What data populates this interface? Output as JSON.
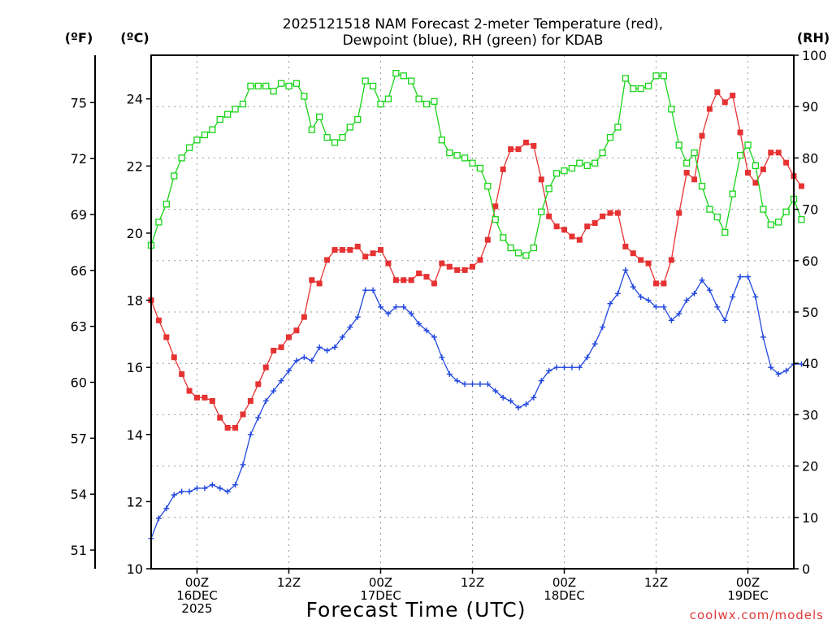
{
  "chart_data": {
    "type": "line",
    "title": [
      "2025121518 NAM Forecast 2-meter Temperature (red),",
      "Dewpoint (blue), RH (green) for KDAB"
    ],
    "xlabel": "Forecast Time (UTC)",
    "credit": "coolwx.com/models",
    "axes": {
      "fahrenheit": {
        "label": "(ºF)",
        "ticks": [
          51,
          54,
          57,
          60,
          63,
          66,
          69,
          72,
          75
        ]
      },
      "celsius": {
        "label": "(ºC)",
        "ticks": [
          10,
          12,
          14,
          16,
          18,
          20,
          22,
          24
        ],
        "ylim": [
          10,
          25.3
        ]
      },
      "rh": {
        "label": "(RH)",
        "ticks": [
          0,
          10,
          20,
          30,
          40,
          50,
          60,
          70,
          80,
          90,
          100
        ],
        "ylim": [
          0,
          100
        ]
      }
    },
    "x_range_hours": [
      0,
      84
    ],
    "x_ticks": [
      {
        "hour": 6,
        "lines": [
          "00Z",
          "16DEC",
          "2025"
        ]
      },
      {
        "hour": 18,
        "lines": [
          "12Z"
        ]
      },
      {
        "hour": 30,
        "lines": [
          "00Z",
          "17DEC"
        ]
      },
      {
        "hour": 42,
        "lines": [
          "12Z"
        ]
      },
      {
        "hour": 54,
        "lines": [
          "00Z",
          "18DEC"
        ]
      },
      {
        "hour": 66,
        "lines": [
          "12Z"
        ]
      },
      {
        "hour": 78,
        "lines": [
          "00Z",
          "19DEC"
        ]
      }
    ],
    "grid": true,
    "series": [
      {
        "name": "Temperature",
        "color": "#e63232",
        "marker": "filled-square",
        "axis": "celsius",
        "values": [
          18.0,
          17.4,
          16.9,
          16.3,
          15.8,
          15.3,
          15.1,
          15.1,
          15.0,
          14.5,
          14.2,
          14.2,
          14.6,
          15.0,
          15.5,
          16.0,
          16.5,
          16.6,
          16.9,
          17.1,
          17.5,
          18.6,
          18.5,
          19.2,
          19.5,
          19.5,
          19.5,
          19.6,
          19.3,
          19.4,
          19.5,
          19.1,
          18.6,
          18.6,
          18.6,
          18.8,
          18.7,
          18.5,
          19.1,
          19.0,
          18.9,
          18.9,
          19.0,
          19.2,
          19.8,
          20.8,
          21.9,
          22.5,
          22.5,
          22.7,
          22.6,
          21.6,
          20.5,
          20.2,
          20.1,
          19.9,
          19.8,
          20.2,
          20.3,
          20.5,
          20.6,
          20.6,
          19.6,
          19.4,
          19.2,
          19.1,
          18.5,
          18.5,
          19.2,
          20.6,
          21.8,
          21.6,
          22.9,
          23.7,
          24.2,
          23.9,
          24.1,
          23.0,
          21.8,
          21.5,
          21.9,
          22.4,
          22.4,
          22.1,
          21.7,
          21.4
        ]
      },
      {
        "name": "Dewpoint",
        "color": "#2247e0",
        "marker": "plus",
        "axis": "celsius",
        "values": [
          10.9,
          11.5,
          11.8,
          12.2,
          12.3,
          12.3,
          12.4,
          12.4,
          12.5,
          12.4,
          12.3,
          12.5,
          13.1,
          14.0,
          14.5,
          15.0,
          15.3,
          15.6,
          15.9,
          16.2,
          16.3,
          16.2,
          16.6,
          16.5,
          16.6,
          16.9,
          17.2,
          17.5,
          18.3,
          18.3,
          17.8,
          17.6,
          17.8,
          17.8,
          17.6,
          17.3,
          17.1,
          16.9,
          16.3,
          15.8,
          15.6,
          15.5,
          15.5,
          15.5,
          15.5,
          15.3,
          15.1,
          15.0,
          14.8,
          14.9,
          15.1,
          15.6,
          15.9,
          16.0,
          16.0,
          16.0,
          16.0,
          16.3,
          16.7,
          17.2,
          17.9,
          18.2,
          18.9,
          18.4,
          18.1,
          18.0,
          17.8,
          17.8,
          17.4,
          17.6,
          18.0,
          18.2,
          18.6,
          18.3,
          17.8,
          17.4,
          18.1,
          18.7,
          18.7,
          18.1,
          16.9,
          16.0,
          15.8,
          15.9,
          16.1,
          16.1
        ]
      },
      {
        "name": "RH",
        "color": "#19d419",
        "marker": "open-square",
        "axis": "rh",
        "values": [
          63.0,
          67.5,
          71.0,
          76.5,
          80.0,
          82.0,
          83.5,
          84.5,
          85.5,
          87.5,
          88.5,
          89.5,
          90.5,
          94.0,
          94.0,
          94.0,
          93.0,
          94.5,
          94.0,
          94.5,
          92.0,
          85.5,
          88.0,
          84.0,
          83.0,
          84.0,
          86.0,
          87.5,
          95.0,
          94.0,
          90.5,
          91.5,
          96.5,
          96.0,
          95.0,
          91.5,
          90.5,
          91.0,
          83.5,
          81.0,
          80.5,
          80.0,
          79.0,
          78.0,
          74.5,
          68.0,
          64.5,
          62.5,
          61.5,
          61.0,
          62.5,
          69.5,
          74.0,
          77.0,
          77.5,
          78.0,
          79.0,
          78.5,
          79.0,
          81.0,
          84.0,
          86.0,
          95.5,
          93.5,
          93.5,
          94.0,
          96.0,
          96.0,
          89.5,
          82.5,
          79.0,
          81.0,
          74.5,
          70.0,
          68.5,
          65.5,
          73.0,
          80.5,
          82.5,
          78.5,
          70.0,
          67.0,
          67.5,
          69.5,
          72.0,
          68.0
        ]
      }
    ]
  }
}
